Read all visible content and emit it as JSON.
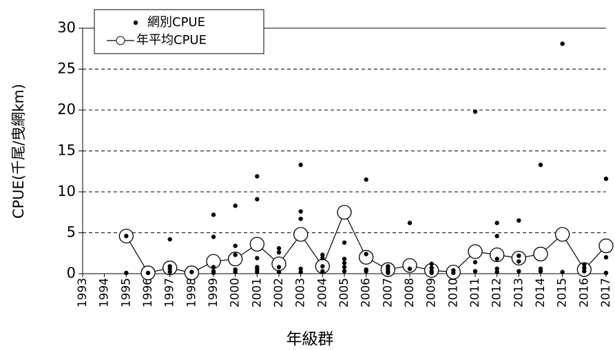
{
  "chart_data": {
    "type": "scatter",
    "xlabel": "年級群",
    "ylabel": "CPUE(千尾/曳網km)",
    "xlim": [
      1993,
      2017
    ],
    "xticks": [
      1993,
      1994,
      1995,
      1996,
      1997,
      1998,
      1999,
      2000,
      2001,
      2002,
      2003,
      2004,
      2005,
      2006,
      2007,
      2008,
      2009,
      2010,
      2011,
      2012,
      2013,
      2014,
      2015,
      2016,
      2017
    ],
    "ylim": [
      0,
      30
    ],
    "yticks": [
      0,
      5,
      10,
      15,
      20,
      25,
      30
    ],
    "grid": true,
    "legend": "top-left",
    "series": [
      {
        "name": "網別CPUE",
        "color": "#000000",
        "mode": "markers",
        "x": [
          1995,
          1995,
          1996,
          1997,
          1997,
          1997,
          1997,
          1998,
          1999,
          1999,
          1999,
          1999,
          1999,
          2000,
          2000,
          2000,
          2000,
          2000,
          2001,
          2001,
          2001,
          2001,
          2001,
          2001,
          2002,
          2002,
          2002,
          2002,
          2003,
          2003,
          2003,
          2003,
          2003,
          2004,
          2004,
          2004,
          2004,
          2005,
          2005,
          2005,
          2005,
          2005,
          2006,
          2006,
          2006,
          2006,
          2007,
          2007,
          2007,
          2007,
          2008,
          2008,
          2009,
          2009,
          2009,
          2009,
          2010,
          2010,
          2011,
          2011,
          2011,
          2012,
          2012,
          2012,
          2012,
          2012,
          2013,
          2013,
          2013,
          2013,
          2014,
          2014,
          2014,
          2015,
          2015,
          2016,
          2016,
          2016,
          2017,
          2017,
          2017
        ],
        "values": [
          0.1,
          4.6,
          0.1,
          4.2,
          0.9,
          0.2,
          0.6,
          0.2,
          7.2,
          4.5,
          0.8,
          0.3,
          0.1,
          8.3,
          3.4,
          2.3,
          0.5,
          0.2,
          11.9,
          9.1,
          1.9,
          0.8,
          0.5,
          0.2,
          3.1,
          2.6,
          0.8,
          0.2,
          13.3,
          7.6,
          6.7,
          0.6,
          0.2,
          2.3,
          1.9,
          0.9,
          0.3,
          3.8,
          1.8,
          1.3,
          0.8,
          0.3,
          11.5,
          2.4,
          0.5,
          0.3,
          0.9,
          0.6,
          0.3,
          0.1,
          6.2,
          0.6,
          1.2,
          0.7,
          0.3,
          0.1,
          0.4,
          0.1,
          19.8,
          1.4,
          0.3,
          6.2,
          4.6,
          1.8,
          0.6,
          0.2,
          6.5,
          2.2,
          1.5,
          0.3,
          13.3,
          0.6,
          0.3,
          28.1,
          0.2,
          1.1,
          0.7,
          0.3,
          11.6,
          2.0,
          0.1
        ]
      },
      {
        "name": "年平均CPUE",
        "color": "#000000",
        "mode": "lines+markers",
        "x": [
          1995,
          1996,
          1997,
          1998,
          1999,
          2000,
          2001,
          2002,
          2003,
          2004,
          2005,
          2006,
          2007,
          2008,
          2009,
          2010,
          2011,
          2012,
          2013,
          2014,
          2015,
          2016,
          2017
        ],
        "values": [
          4.6,
          0.1,
          0.7,
          0.1,
          1.5,
          1.8,
          3.6,
          1.2,
          4.8,
          0.9,
          7.5,
          2.0,
          0.5,
          1.0,
          0.4,
          0.2,
          2.7,
          2.3,
          1.9,
          2.4,
          4.8,
          0.5,
          3.4
        ]
      }
    ]
  }
}
